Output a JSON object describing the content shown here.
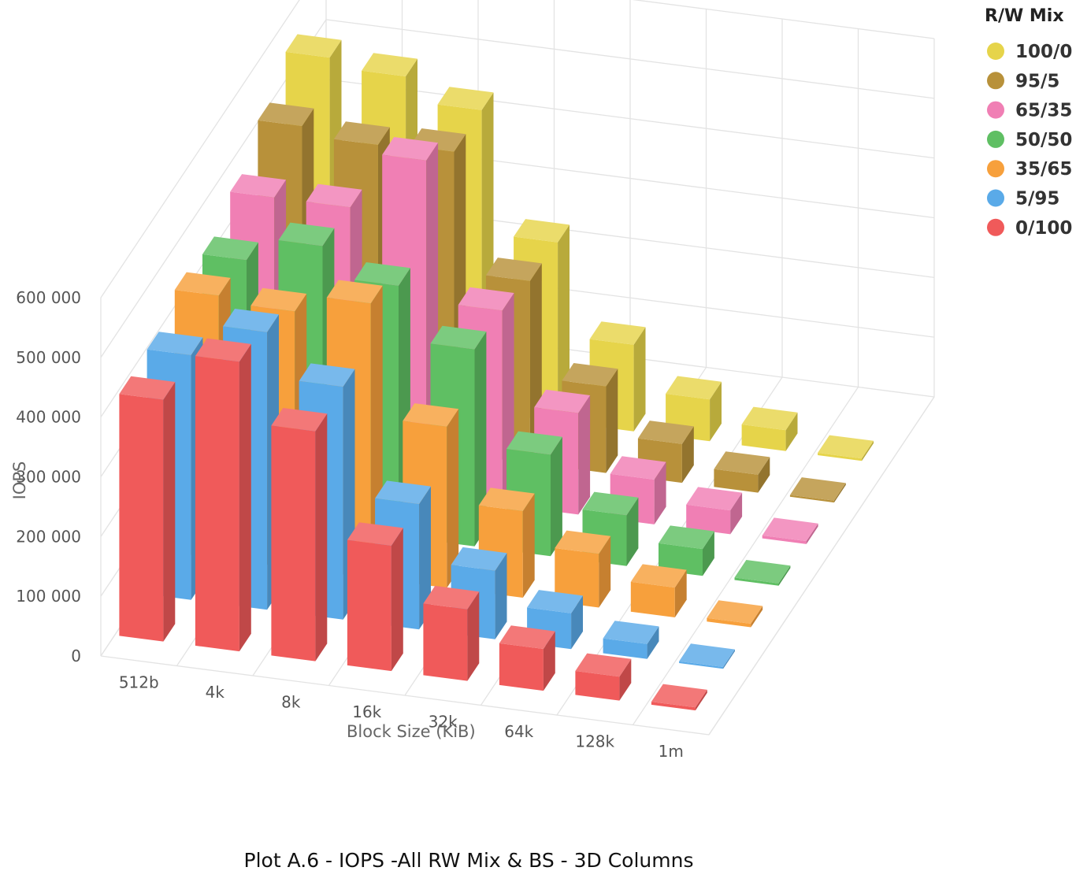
{
  "chart_data": {
    "type": "bar",
    "subtype": "3d-columns",
    "caption": "Plot A.6 - IOPS -All RW Mix & BS - 3D Columns",
    "xlabel": "Block Size (KiB)",
    "ylabel": "IOPS",
    "ylim": [
      0,
      600000
    ],
    "yticks": [
      "0",
      "100 000",
      "200 000",
      "300 000",
      "400 000",
      "500 000",
      "600 000"
    ],
    "ytick_values": [
      0,
      100000,
      200000,
      300000,
      400000,
      500000,
      600000
    ],
    "categories": [
      "512b",
      "4k",
      "8k",
      "16k",
      "32k",
      "64k",
      "128k",
      "1m"
    ],
    "legend_title": "R/W Mix",
    "legend_position": "top-right",
    "grid": true,
    "series": [
      {
        "name": "0/100",
        "color": "#f05a5a",
        "values": [
          405000,
          485000,
          385000,
          210000,
          120000,
          70000,
          40000,
          5000
        ]
      },
      {
        "name": "5/95",
        "color": "#5aaae8",
        "values": [
          410000,
          465000,
          390000,
          210000,
          115000,
          60000,
          25000,
          3000
        ]
      },
      {
        "name": "35/65",
        "color": "#f7a03c",
        "values": [
          440000,
          430000,
          460000,
          270000,
          145000,
          90000,
          50000,
          6000
        ]
      },
      {
        "name": "50/50",
        "color": "#5fbf63",
        "values": [
          430000,
          470000,
          420000,
          330000,
          170000,
          85000,
          45000,
          4000
        ]
      },
      {
        "name": "65/35",
        "color": "#f07fb4",
        "values": [
          465000,
          465000,
          560000,
          325000,
          170000,
          75000,
          40000,
          5000
        ]
      },
      {
        "name": "95/5",
        "color": "#b8913a",
        "values": [
          515000,
          500000,
          505000,
          305000,
          145000,
          65000,
          30000,
          3000
        ]
      },
      {
        "name": "100/0",
        "color": "#e6d44a",
        "values": [
          560000,
          545000,
          505000,
          300000,
          145000,
          70000,
          35000,
          4000
        ]
      }
    ]
  }
}
